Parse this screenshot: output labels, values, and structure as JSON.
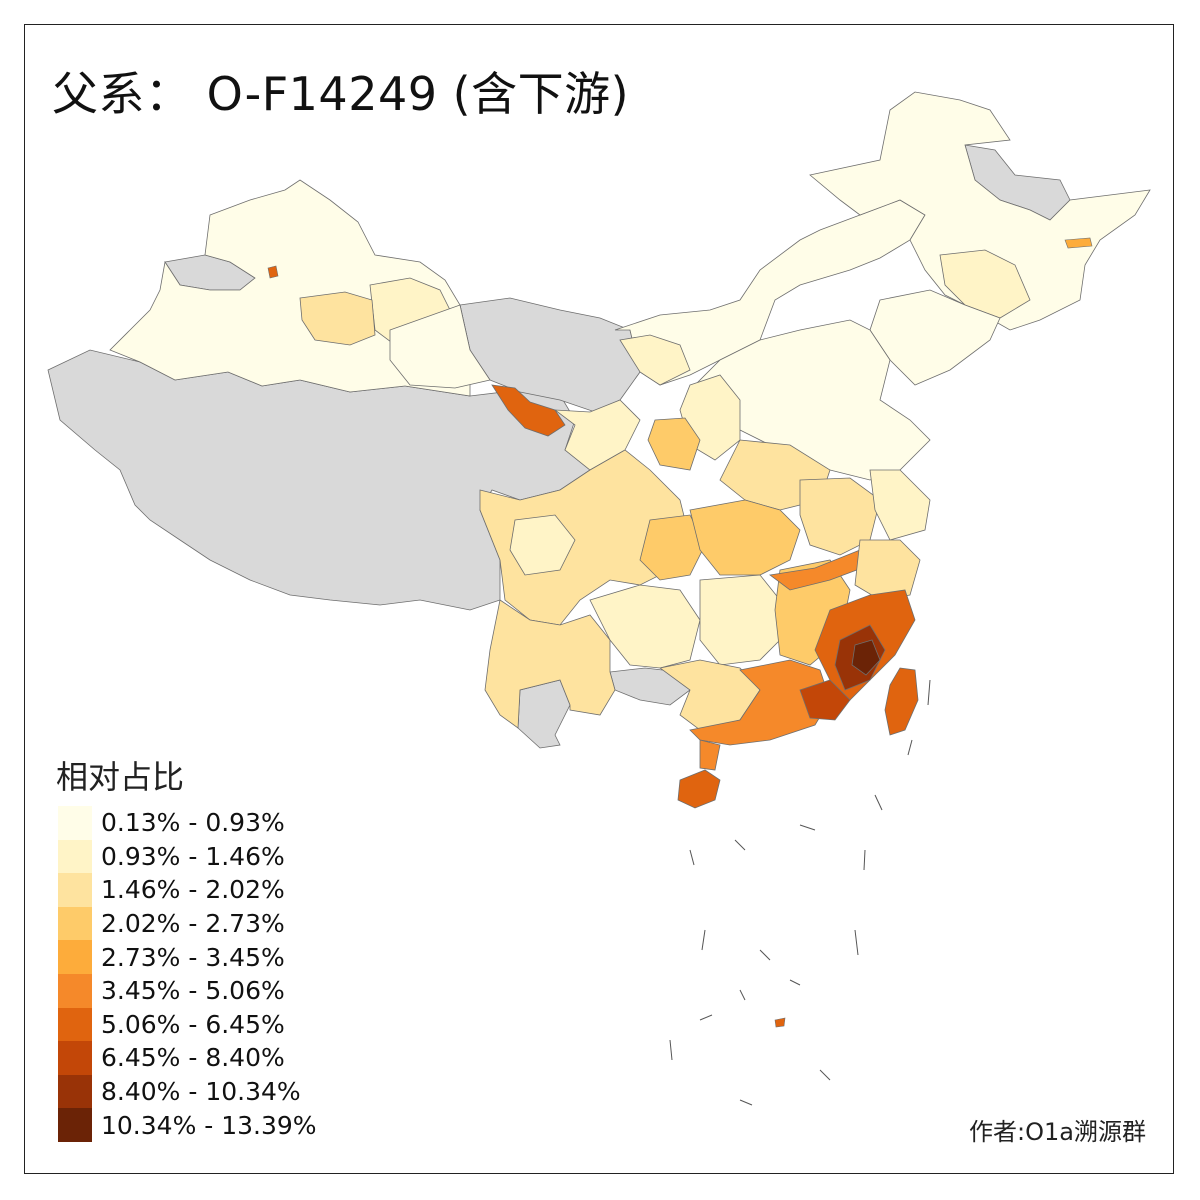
{
  "title": "父系： O-F14249 (含下游)",
  "legend": {
    "title": "相对占比",
    "classes": [
      {
        "label": "0.13% - 0.93%",
        "color": "#fffde8"
      },
      {
        "label": "0.93% - 1.46%",
        "color": "#fff4c7"
      },
      {
        "label": "1.46% - 2.02%",
        "color": "#fee39f"
      },
      {
        "label": "2.02% - 2.73%",
        "color": "#fecb69"
      },
      {
        "label": "2.73% - 3.45%",
        "color": "#fdac3b"
      },
      {
        "label": "3.45% - 5.06%",
        "color": "#f5892a"
      },
      {
        "label": "5.06% - 6.45%",
        "color": "#e0640f"
      },
      {
        "label": "6.45% - 8.40%",
        "color": "#c34708"
      },
      {
        "label": "8.40% - 10.34%",
        "color": "#993307"
      },
      {
        "label": "10.34% - 13.39%",
        "color": "#6b2306"
      }
    ]
  },
  "no_data_color": "#d9d9d9",
  "credit": "作者:O1a溯源群"
}
